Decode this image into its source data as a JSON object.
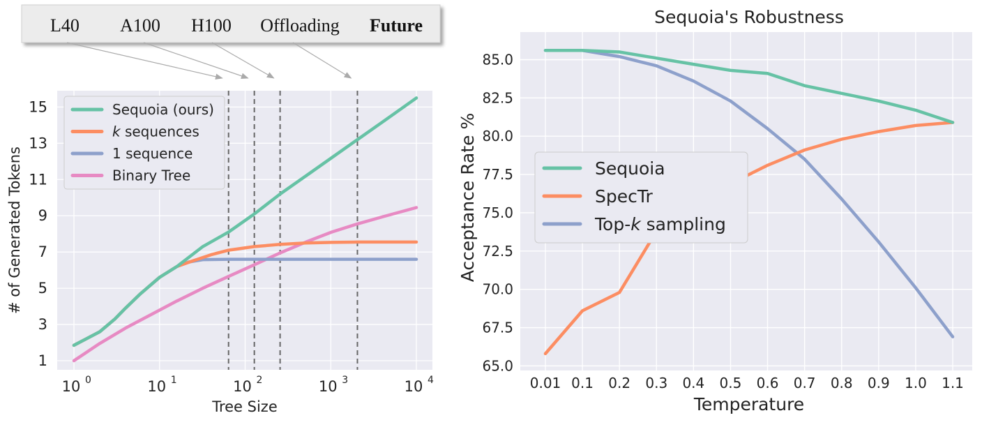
{
  "chart_data": [
    {
      "type": "line",
      "title": "",
      "xlabel": "Tree Size",
      "ylabel": "# of Generated Tokens",
      "xscale": "log",
      "xlim": [
        1,
        10000
      ],
      "ylim": [
        0.5,
        15.9
      ],
      "x_ticks": [
        {
          "value": 1,
          "base": "10",
          "exp": "0"
        },
        {
          "value": 10,
          "base": "10",
          "exp": "1"
        },
        {
          "value": 100,
          "base": "10",
          "exp": "2"
        },
        {
          "value": 1000,
          "base": "10",
          "exp": "3"
        },
        {
          "value": 10000,
          "base": "10",
          "exp": "4"
        }
      ],
      "y_ticks": [
        "1",
        "3",
        "5",
        "7",
        "9",
        "11",
        "13",
        "15"
      ],
      "grid": true,
      "legend_position": "top-left",
      "hardware_labels": [
        "L40",
        "A100",
        "H100",
        "Offloading",
        "Future"
      ],
      "hardware_lines_x": [
        64,
        128,
        256,
        2048
      ],
      "series": [
        {
          "name": "Sequoia (ours)",
          "color": "#66c2a5",
          "points": [
            [
              1,
              1.85
            ],
            [
              2,
              2.6
            ],
            [
              3,
              3.3
            ],
            [
              4,
              3.9
            ],
            [
              6,
              4.7
            ],
            [
              10,
              5.6
            ],
            [
              16,
              6.2
            ],
            [
              32,
              7.3
            ],
            [
              64,
              8.1
            ],
            [
              128,
              9.1
            ],
            [
              256,
              10.2
            ],
            [
              512,
              11.2
            ],
            [
              1024,
              12.2
            ],
            [
              2048,
              13.2
            ],
            [
              4096,
              14.2
            ],
            [
              10000,
              15.5
            ]
          ]
        },
        {
          "name": "k sequences",
          "name_prefix": "k",
          "name_suffix": " sequences",
          "color": "#fc8d62",
          "points": [
            [
              1,
              1.85
            ],
            [
              2,
              2.6
            ],
            [
              3,
              3.3
            ],
            [
              4,
              3.9
            ],
            [
              6,
              4.7
            ],
            [
              10,
              5.6
            ],
            [
              16,
              6.2
            ],
            [
              24,
              6.5
            ],
            [
              40,
              6.85
            ],
            [
              64,
              7.1
            ],
            [
              128,
              7.3
            ],
            [
              256,
              7.42
            ],
            [
              512,
              7.5
            ],
            [
              1024,
              7.53
            ],
            [
              2048,
              7.55
            ],
            [
              10000,
              7.55
            ]
          ]
        },
        {
          "name": "1 sequence",
          "color": "#8da0cb",
          "points": [
            [
              1,
              1.85
            ],
            [
              2,
              2.6
            ],
            [
              3,
              3.3
            ],
            [
              4,
              3.9
            ],
            [
              6,
              4.7
            ],
            [
              10,
              5.6
            ],
            [
              16,
              6.2
            ],
            [
              22,
              6.45
            ],
            [
              32,
              6.58
            ],
            [
              64,
              6.6
            ],
            [
              1000,
              6.6
            ],
            [
              10000,
              6.6
            ]
          ]
        },
        {
          "name": "Binary Tree",
          "color": "#e78ac3",
          "points": [
            [
              1,
              1.0
            ],
            [
              2,
              1.95
            ],
            [
              4,
              2.8
            ],
            [
              8,
              3.55
            ],
            [
              16,
              4.3
            ],
            [
              32,
              5.0
            ],
            [
              64,
              5.65
            ],
            [
              128,
              6.3
            ],
            [
              256,
              6.95
            ],
            [
              512,
              7.55
            ],
            [
              1024,
              8.1
            ],
            [
              2048,
              8.55
            ],
            [
              4096,
              8.95
            ],
            [
              10000,
              9.45
            ]
          ]
        }
      ]
    },
    {
      "type": "line",
      "title": "Sequoia's Robustness",
      "xlabel": "Temperature",
      "ylabel": "Acceptance Rate %",
      "categories": [
        "0.01",
        "0.1",
        "0.2",
        "0.3",
        "0.4",
        "0.5",
        "0.6",
        "0.7",
        "0.8",
        "0.9",
        "1.0",
        "1.1"
      ],
      "ylim": [
        64.7,
        86.8
      ],
      "y_ticks": [
        "65.0",
        "67.5",
        "70.0",
        "72.5",
        "75.0",
        "77.5",
        "80.0",
        "82.5",
        "85.0"
      ],
      "grid": true,
      "legend_position": "center-left",
      "series": [
        {
          "name": "Sequoia",
          "color": "#66c2a5",
          "values": [
            85.6,
            85.6,
            85.5,
            85.1,
            84.7,
            84.3,
            84.1,
            83.3,
            82.8,
            82.3,
            81.7,
            80.9
          ]
        },
        {
          "name": "SpecTr",
          "color": "#fc8d62",
          "values": [
            65.8,
            68.6,
            69.8,
            73.8,
            75.6,
            76.9,
            78.1,
            79.1,
            79.8,
            80.3,
            80.7,
            80.9
          ]
        },
        {
          "name": "Top-k sampling",
          "name_prefix": "Top-",
          "name_italic": "k",
          "name_suffix": " sampling",
          "color": "#8da0cb",
          "values": [
            85.6,
            85.6,
            85.2,
            84.6,
            83.6,
            82.3,
            80.5,
            78.5,
            75.9,
            73.1,
            70.1,
            66.9
          ]
        }
      ]
    }
  ]
}
